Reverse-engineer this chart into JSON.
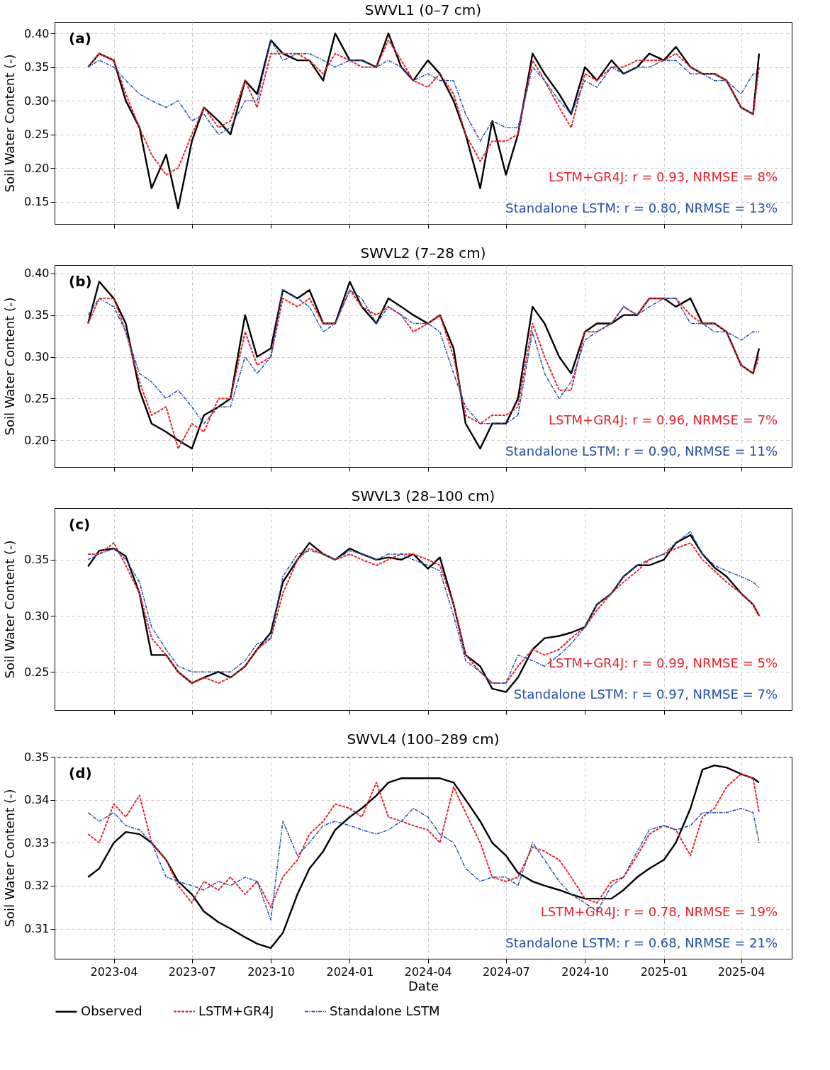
{
  "chart_data": [
    {
      "type": "line",
      "title": "SWVL1 (0–7 cm)",
      "ylabel": "Soil Water Content (-)",
      "tick_labels": "y",
      "grid": true,
      "annotations": [
        "(a)",
        "LSTM+GR4J: r = 0.93, NRMSE = 8%",
        "Standalone LSTM: r = 0.80, NRMSE = 13%"
      ],
      "xlim": [
        "2023-01-22",
        "2025-05-30"
      ],
      "xticks": [
        "2023-04",
        "2023-07",
        "2023-10",
        "2024-01",
        "2024-04",
        "2024-07",
        "2024-10",
        "2025-01",
        "2025-04"
      ],
      "ylim": [
        0.117,
        0.417
      ],
      "yticks": [
        0.15,
        {
          "value": 0.2,
          "label": "0.20"
        },
        0.25,
        {
          "value": 0.3,
          "label": "0.30"
        },
        0.35,
        {
          "value": 0.4,
          "label": "0.40"
        }
      ],
      "x": [
        "2023-03-02",
        "2023-03-15",
        "2023-04-01",
        "2023-04-15",
        "2023-05-01",
        "2023-05-15",
        "2023-06-01",
        "2023-06-15",
        "2023-07-01",
        "2023-07-15",
        "2023-08-01",
        "2023-08-15",
        "2023-09-01",
        "2023-09-15",
        "2023-10-01",
        "2023-10-15",
        "2023-11-01",
        "2023-11-15",
        "2023-12-01",
        "2023-12-15",
        "2024-01-01",
        "2024-01-15",
        "2024-02-01",
        "2024-02-15",
        "2024-03-01",
        "2024-03-15",
        "2024-04-01",
        "2024-04-15",
        "2024-05-01",
        "2024-05-15",
        "2024-06-01",
        "2024-06-15",
        "2024-07-01",
        "2024-07-15",
        "2024-08-01",
        "2024-08-15",
        "2024-09-01",
        "2024-09-15",
        "2024-10-01",
        "2024-10-15",
        "2024-11-01",
        "2024-11-15",
        "2024-12-01",
        "2024-12-15",
        "2025-01-01",
        "2025-01-15",
        "2025-02-01",
        "2025-02-15",
        "2025-03-01",
        "2025-03-15",
        "2025-04-01",
        "2025-04-15",
        "2025-04-22"
      ],
      "series": [
        {
          "color": "#000000",
          "line_style": "solid",
          "values": [
            0.35,
            0.37,
            0.36,
            0.3,
            0.26,
            0.17,
            0.22,
            0.14,
            0.24,
            0.29,
            0.27,
            0.25,
            0.33,
            0.31,
            0.39,
            0.37,
            0.36,
            0.36,
            0.33,
            0.4,
            0.36,
            0.36,
            0.35,
            0.4,
            0.35,
            0.33,
            0.36,
            0.34,
            0.3,
            0.25,
            0.17,
            0.27,
            0.19,
            0.25,
            0.37,
            0.34,
            0.31,
            0.28,
            0.35,
            0.33,
            0.36,
            0.34,
            0.35,
            0.37,
            0.36,
            0.38,
            0.35,
            0.34,
            0.34,
            0.33,
            0.29,
            0.28,
            0.37
          ]
        },
        {
          "color": "#e8202a",
          "line_style": "dashed",
          "values": [
            0.35,
            0.37,
            0.36,
            0.31,
            0.26,
            0.22,
            0.19,
            0.2,
            0.25,
            0.29,
            0.26,
            0.27,
            0.33,
            0.29,
            0.37,
            0.37,
            0.37,
            0.36,
            0.34,
            0.37,
            0.36,
            0.35,
            0.35,
            0.39,
            0.36,
            0.33,
            0.32,
            0.34,
            0.31,
            0.25,
            0.21,
            0.24,
            0.24,
            0.25,
            0.36,
            0.33,
            0.29,
            0.26,
            0.34,
            0.33,
            0.35,
            0.35,
            0.36,
            0.36,
            0.36,
            0.37,
            0.35,
            0.34,
            0.34,
            0.33,
            0.29,
            0.28,
            0.35
          ]
        },
        {
          "color": "#1f4fa8",
          "line_style": "dashdot",
          "values": [
            0.35,
            0.36,
            0.35,
            0.33,
            0.31,
            0.3,
            0.29,
            0.3,
            0.27,
            0.28,
            0.25,
            0.26,
            0.3,
            0.3,
            0.39,
            0.36,
            0.37,
            0.37,
            0.36,
            0.35,
            0.36,
            0.36,
            0.35,
            0.36,
            0.35,
            0.33,
            0.34,
            0.33,
            0.33,
            0.28,
            0.24,
            0.27,
            0.26,
            0.26,
            0.35,
            0.33,
            0.3,
            0.28,
            0.33,
            0.32,
            0.35,
            0.34,
            0.35,
            0.35,
            0.36,
            0.36,
            0.34,
            0.34,
            0.33,
            0.33,
            0.31,
            0.34,
            0.34
          ]
        }
      ]
    },
    {
      "type": "line",
      "title": "SWVL2 (7–28 cm)",
      "ylabel": "Soil Water Content (-)",
      "tick_labels": "y",
      "grid": true,
      "annotations": [
        "(b)",
        "LSTM+GR4J: r = 0.96, NRMSE = 7%",
        "Standalone LSTM: r = 0.90, NRMSE = 11%"
      ],
      "xlim": [
        "2023-01-22",
        "2025-05-30"
      ],
      "xticks": [
        "2023-04",
        "2023-07",
        "2023-10",
        "2024-01",
        "2024-04",
        "2024-07",
        "2024-10",
        "2025-01",
        "2025-04"
      ],
      "ylim": [
        0.168,
        0.41
      ],
      "yticks": [
        {
          "value": 0.2,
          "label": "0.20"
        },
        0.25,
        {
          "value": 0.3,
          "label": "0.30"
        },
        0.35,
        {
          "value": 0.4,
          "label": "0.40"
        }
      ],
      "x": [
        "2023-03-02",
        "2023-03-15",
        "2023-04-01",
        "2023-04-15",
        "2023-05-01",
        "2023-05-15",
        "2023-06-01",
        "2023-06-15",
        "2023-07-01",
        "2023-07-15",
        "2023-08-01",
        "2023-08-15",
        "2023-09-01",
        "2023-09-15",
        "2023-10-01",
        "2023-10-15",
        "2023-11-01",
        "2023-11-15",
        "2023-12-01",
        "2023-12-15",
        "2024-01-01",
        "2024-01-15",
        "2024-02-01",
        "2024-02-15",
        "2024-03-01",
        "2024-03-15",
        "2024-04-01",
        "2024-04-15",
        "2024-05-01",
        "2024-05-15",
        "2024-06-01",
        "2024-06-15",
        "2024-07-01",
        "2024-07-15",
        "2024-08-01",
        "2024-08-15",
        "2024-09-01",
        "2024-09-15",
        "2024-10-01",
        "2024-10-15",
        "2024-11-01",
        "2024-11-15",
        "2024-12-01",
        "2024-12-15",
        "2025-01-01",
        "2025-01-15",
        "2025-02-01",
        "2025-02-15",
        "2025-03-01",
        "2025-03-15",
        "2025-04-01",
        "2025-04-15",
        "2025-04-22"
      ],
      "series": [
        {
          "color": "#000000",
          "line_style": "solid",
          "values": [
            0.34,
            0.39,
            0.37,
            0.34,
            0.26,
            0.22,
            0.21,
            0.2,
            0.19,
            0.23,
            0.24,
            0.25,
            0.35,
            0.3,
            0.31,
            0.38,
            0.37,
            0.38,
            0.34,
            0.34,
            0.39,
            0.36,
            0.34,
            0.37,
            0.36,
            0.35,
            0.34,
            0.35,
            0.31,
            0.22,
            0.19,
            0.22,
            0.22,
            0.25,
            0.36,
            0.34,
            0.3,
            0.28,
            0.33,
            0.34,
            0.34,
            0.35,
            0.35,
            0.37,
            0.37,
            0.36,
            0.37,
            0.34,
            0.34,
            0.33,
            0.29,
            0.28,
            0.31
          ]
        },
        {
          "color": "#e8202a",
          "line_style": "dashed",
          "values": [
            0.34,
            0.37,
            0.37,
            0.33,
            0.27,
            0.23,
            0.24,
            0.19,
            0.22,
            0.21,
            0.25,
            0.25,
            0.33,
            0.29,
            0.3,
            0.37,
            0.36,
            0.37,
            0.34,
            0.34,
            0.38,
            0.36,
            0.35,
            0.36,
            0.35,
            0.33,
            0.34,
            0.35,
            0.3,
            0.23,
            0.22,
            0.23,
            0.23,
            0.24,
            0.34,
            0.3,
            0.26,
            0.26,
            0.33,
            0.33,
            0.34,
            0.36,
            0.35,
            0.37,
            0.37,
            0.37,
            0.35,
            0.34,
            0.34,
            0.33,
            0.29,
            0.28,
            0.3
          ]
        },
        {
          "color": "#1f4fa8",
          "line_style": "dashdot",
          "values": [
            0.35,
            0.37,
            0.36,
            0.33,
            0.28,
            0.27,
            0.25,
            0.26,
            0.24,
            0.22,
            0.24,
            0.24,
            0.3,
            0.28,
            0.3,
            0.38,
            0.37,
            0.36,
            0.33,
            0.34,
            0.38,
            0.37,
            0.34,
            0.36,
            0.35,
            0.34,
            0.34,
            0.33,
            0.28,
            0.24,
            0.22,
            0.22,
            0.22,
            0.23,
            0.33,
            0.28,
            0.25,
            0.27,
            0.32,
            0.33,
            0.34,
            0.36,
            0.35,
            0.36,
            0.37,
            0.37,
            0.34,
            0.34,
            0.33,
            0.33,
            0.32,
            0.33,
            0.33
          ]
        }
      ]
    },
    {
      "type": "line",
      "title": "SWVL3 (28–100 cm)",
      "ylabel": "Soil Water Content (-)",
      "tick_labels": "y",
      "grid": true,
      "annotations": [
        "(c)",
        "LSTM+GR4J: r = 0.99, NRMSE = 5%",
        "Standalone LSTM: r = 0.97, NRMSE = 7%"
      ],
      "xlim": [
        "2023-01-22",
        "2025-05-30"
      ],
      "xticks": [
        "2023-04",
        "2023-07",
        "2023-10",
        "2024-01",
        "2024-04",
        "2024-07",
        "2024-10",
        "2025-01",
        "2025-04"
      ],
      "ylim": [
        0.216,
        0.396
      ],
      "yticks": [
        0.25,
        {
          "value": 0.3,
          "label": "0.30"
        },
        0.35
      ],
      "x": [
        "2023-03-02",
        "2023-03-15",
        "2023-04-01",
        "2023-04-15",
        "2023-05-01",
        "2023-05-15",
        "2023-06-01",
        "2023-06-15",
        "2023-07-01",
        "2023-07-15",
        "2023-08-01",
        "2023-08-15",
        "2023-09-01",
        "2023-09-15",
        "2023-10-01",
        "2023-10-15",
        "2023-11-01",
        "2023-11-15",
        "2023-12-01",
        "2023-12-15",
        "2024-01-01",
        "2024-01-15",
        "2024-02-01",
        "2024-02-15",
        "2024-03-01",
        "2024-03-15",
        "2024-04-01",
        "2024-04-15",
        "2024-05-01",
        "2024-05-15",
        "2024-06-01",
        "2024-06-15",
        "2024-07-01",
        "2024-07-15",
        "2024-08-01",
        "2024-08-15",
        "2024-09-01",
        "2024-09-15",
        "2024-10-01",
        "2024-10-15",
        "2024-11-01",
        "2024-11-15",
        "2024-12-01",
        "2024-12-15",
        "2025-01-01",
        "2025-01-15",
        "2025-02-01",
        "2025-02-15",
        "2025-03-01",
        "2025-03-15",
        "2025-04-01",
        "2025-04-15",
        "2025-04-22"
      ],
      "series": [
        {
          "color": "#000000",
          "line_style": "solid",
          "values": [
            0.344,
            0.358,
            0.36,
            0.353,
            0.32,
            0.265,
            0.265,
            0.25,
            0.24,
            0.245,
            0.25,
            0.245,
            0.255,
            0.27,
            0.285,
            0.33,
            0.35,
            0.365,
            0.355,
            0.35,
            0.36,
            0.355,
            0.35,
            0.352,
            0.35,
            0.355,
            0.342,
            0.352,
            0.31,
            0.265,
            0.255,
            0.235,
            0.232,
            0.245,
            0.27,
            0.28,
            0.282,
            0.285,
            0.29,
            0.31,
            0.32,
            0.335,
            0.345,
            0.345,
            0.35,
            0.365,
            0.372,
            0.355,
            0.343,
            0.335,
            0.32,
            0.31,
            0.3
          ]
        },
        {
          "color": "#e8202a",
          "line_style": "dashed",
          "values": [
            0.355,
            0.355,
            0.365,
            0.345,
            0.32,
            0.28,
            0.265,
            0.25,
            0.24,
            0.245,
            0.24,
            0.245,
            0.255,
            0.27,
            0.28,
            0.32,
            0.35,
            0.36,
            0.355,
            0.35,
            0.355,
            0.35,
            0.345,
            0.35,
            0.355,
            0.355,
            0.35,
            0.345,
            0.31,
            0.265,
            0.25,
            0.24,
            0.24,
            0.255,
            0.27,
            0.265,
            0.27,
            0.28,
            0.29,
            0.305,
            0.32,
            0.33,
            0.34,
            0.35,
            0.355,
            0.36,
            0.365,
            0.35,
            0.34,
            0.33,
            0.32,
            0.31,
            0.3
          ]
        },
        {
          "color": "#1f4fa8",
          "line_style": "dashdot",
          "values": [
            0.35,
            0.355,
            0.36,
            0.35,
            0.33,
            0.29,
            0.27,
            0.255,
            0.25,
            0.25,
            0.25,
            0.25,
            0.26,
            0.275,
            0.28,
            0.335,
            0.355,
            0.358,
            0.355,
            0.35,
            0.358,
            0.355,
            0.35,
            0.355,
            0.355,
            0.35,
            0.345,
            0.34,
            0.3,
            0.26,
            0.25,
            0.24,
            0.24,
            0.265,
            0.26,
            0.255,
            0.265,
            0.275,
            0.29,
            0.31,
            0.32,
            0.335,
            0.345,
            0.35,
            0.355,
            0.365,
            0.375,
            0.355,
            0.345,
            0.34,
            0.335,
            0.33,
            0.325
          ]
        }
      ]
    },
    {
      "type": "line",
      "title": "SWVL4 (100–289 cm)",
      "ylabel": "Soil Water Content (-)",
      "xlabel": "Date",
      "grid": true,
      "legend": "bottom",
      "annotations": [
        "(d)",
        "LSTM+GR4J: r = 0.78, NRMSE = 19%",
        "Standalone LSTM: r = 0.68, NRMSE = 21%"
      ],
      "xlim": [
        "2023-01-22",
        "2025-05-30"
      ],
      "xticks": [
        "2023-04",
        "2023-07",
        "2023-10",
        "2024-01",
        "2024-04",
        "2024-07",
        "2024-10",
        "2025-01",
        "2025-04"
      ],
      "ylim": [
        0.303,
        0.35
      ],
      "yticks": [
        0.31,
        0.32,
        0.33,
        0.34,
        0.35
      ],
      "x": [
        "2023-03-02",
        "2023-03-15",
        "2023-04-01",
        "2023-04-15",
        "2023-05-01",
        "2023-05-15",
        "2023-06-01",
        "2023-06-15",
        "2023-07-01",
        "2023-07-15",
        "2023-08-01",
        "2023-08-15",
        "2023-09-01",
        "2023-09-15",
        "2023-10-01",
        "2023-10-15",
        "2023-11-01",
        "2023-11-15",
        "2023-12-01",
        "2023-12-15",
        "2024-01-01",
        "2024-01-15",
        "2024-02-01",
        "2024-02-15",
        "2024-03-01",
        "2024-03-15",
        "2024-04-01",
        "2024-04-15",
        "2024-05-01",
        "2024-05-15",
        "2024-06-01",
        "2024-06-15",
        "2024-07-01",
        "2024-07-15",
        "2024-08-01",
        "2024-08-15",
        "2024-09-01",
        "2024-09-15",
        "2024-10-01",
        "2024-10-15",
        "2024-11-01",
        "2024-11-15",
        "2024-12-01",
        "2024-12-15",
        "2025-01-01",
        "2025-01-15",
        "2025-02-01",
        "2025-02-15",
        "2025-03-01",
        "2025-03-15",
        "2025-04-01",
        "2025-04-15",
        "2025-04-22"
      ],
      "series": [
        {
          "name": "Observed",
          "color": "#000000",
          "line_style": "solid",
          "values": [
            0.322,
            0.324,
            0.33,
            0.3325,
            0.332,
            0.33,
            0.326,
            0.321,
            0.318,
            0.314,
            0.3115,
            0.31,
            0.308,
            0.3065,
            0.3055,
            0.309,
            0.318,
            0.324,
            0.328,
            0.333,
            0.336,
            0.338,
            0.341,
            0.344,
            0.345,
            0.345,
            0.345,
            0.345,
            0.344,
            0.34,
            0.335,
            0.33,
            0.327,
            0.323,
            0.321,
            0.32,
            0.319,
            0.318,
            0.317,
            0.317,
            0.317,
            0.319,
            0.322,
            0.324,
            0.326,
            0.33,
            0.338,
            0.347,
            0.348,
            0.3475,
            0.346,
            0.345,
            0.344
          ]
        },
        {
          "name": "LSTM+GR4J",
          "color": "#e8202a",
          "line_style": "dashed",
          "values": [
            0.332,
            0.33,
            0.339,
            0.336,
            0.341,
            0.33,
            0.326,
            0.32,
            0.316,
            0.321,
            0.319,
            0.322,
            0.318,
            0.321,
            0.315,
            0.322,
            0.326,
            0.332,
            0.335,
            0.339,
            0.338,
            0.336,
            0.344,
            0.336,
            0.335,
            0.334,
            0.333,
            0.33,
            0.343,
            0.337,
            0.33,
            0.322,
            0.321,
            0.322,
            0.329,
            0.328,
            0.326,
            0.322,
            0.317,
            0.316,
            0.321,
            0.322,
            0.327,
            0.332,
            0.334,
            0.333,
            0.327,
            0.336,
            0.338,
            0.343,
            0.346,
            0.345,
            0.337
          ]
        },
        {
          "name": "Standalone LSTM",
          "color": "#1f4fa8",
          "line_style": "dashdot",
          "values": [
            0.337,
            0.335,
            0.337,
            0.334,
            0.333,
            0.33,
            0.322,
            0.321,
            0.32,
            0.319,
            0.321,
            0.32,
            0.322,
            0.321,
            0.312,
            0.335,
            0.327,
            0.33,
            0.334,
            0.335,
            0.334,
            0.333,
            0.332,
            0.333,
            0.335,
            0.338,
            0.336,
            0.332,
            0.33,
            0.324,
            0.321,
            0.322,
            0.322,
            0.32,
            0.33,
            0.326,
            0.321,
            0.318,
            0.316,
            0.314,
            0.32,
            0.322,
            0.328,
            0.333,
            0.334,
            0.333,
            0.334,
            0.337,
            0.337,
            0.337,
            0.338,
            0.337,
            0.33
          ]
        }
      ]
    }
  ]
}
